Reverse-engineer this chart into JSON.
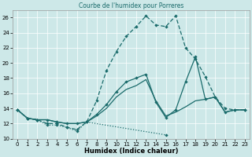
{
  "title": "Courbe de l'humidex pour Porreres",
  "xlabel": "Humidex (Indice chaleur)",
  "bg_color": "#cde8e8",
  "line_color": "#1a6b6b",
  "grid_color": "#ffffff",
  "xlim": [
    -0.5,
    23.5
  ],
  "ylim": [
    10,
    27
  ],
  "yticks": [
    10,
    12,
    14,
    16,
    18,
    20,
    22,
    24,
    26
  ],
  "xticks": [
    0,
    1,
    2,
    3,
    4,
    5,
    6,
    7,
    8,
    9,
    10,
    11,
    12,
    13,
    14,
    15,
    16,
    17,
    18,
    19,
    20,
    21,
    22,
    23
  ],
  "series1_x": [
    0,
    1,
    2,
    3,
    4,
    5,
    6,
    7,
    15
  ],
  "series1_y": [
    13.8,
    12.7,
    12.5,
    11.8,
    11.8,
    11.5,
    11.0,
    12.2,
    10.5
  ],
  "series2_x": [
    0,
    1,
    2,
    3,
    4,
    5,
    6,
    7,
    8,
    9,
    10,
    11,
    12,
    13,
    14,
    15,
    16,
    17,
    18,
    19,
    20,
    21,
    22,
    23
  ],
  "series2_y": [
    13.8,
    12.7,
    12.5,
    12.5,
    12.2,
    12.0,
    12.0,
    12.2,
    13.0,
    14.0,
    15.5,
    16.5,
    17.0,
    17.8,
    15.0,
    13.0,
    13.5,
    14.2,
    15.0,
    15.2,
    15.5,
    13.5,
    13.8,
    13.8
  ],
  "series3_x": [
    0,
    1,
    2,
    3,
    4,
    5,
    6,
    7,
    8,
    9,
    10,
    11,
    12,
    13,
    14,
    15,
    16,
    17,
    18,
    19,
    20,
    21,
    22,
    23
  ],
  "series3_y": [
    13.8,
    12.7,
    12.5,
    12.0,
    12.0,
    11.5,
    11.2,
    12.2,
    15.0,
    19.0,
    21.5,
    23.5,
    24.8,
    26.2,
    25.0,
    24.8,
    26.2,
    22.0,
    20.5,
    18.2,
    15.5,
    14.0,
    13.8,
    13.8
  ],
  "series4_x": [
    0,
    1,
    2,
    3,
    4,
    5,
    6,
    7,
    8,
    9,
    10,
    11,
    12,
    13,
    14,
    15,
    16,
    17,
    18,
    19,
    20,
    21,
    22,
    23
  ],
  "series4_y": [
    13.8,
    12.7,
    12.5,
    12.5,
    12.2,
    12.0,
    12.0,
    12.2,
    13.2,
    14.5,
    16.2,
    17.5,
    18.0,
    18.5,
    14.8,
    12.8,
    13.8,
    17.5,
    20.8,
    15.2,
    15.5,
    13.5,
    13.8,
    13.8
  ]
}
